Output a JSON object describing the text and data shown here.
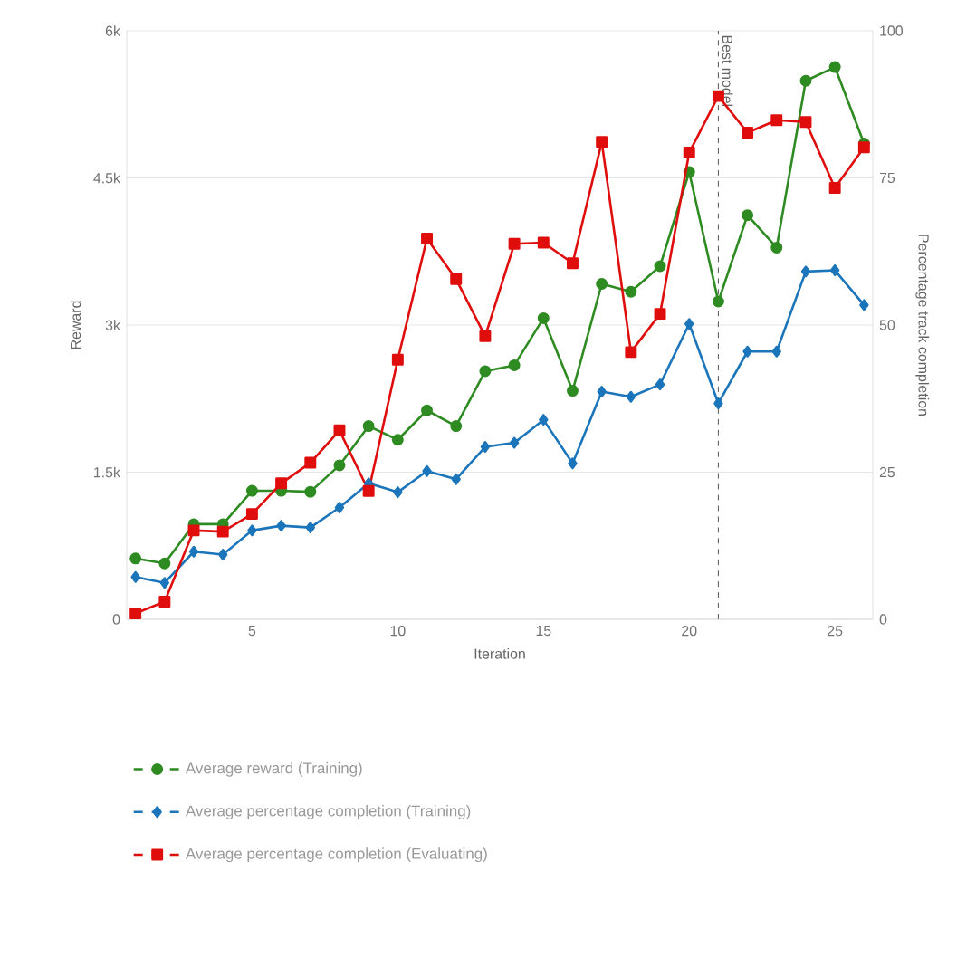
{
  "chart_data": {
    "type": "line",
    "xlabel": "Iteration",
    "ylabel": "Reward",
    "y2label": "Percentage track completion",
    "x": [
      1,
      2,
      3,
      4,
      5,
      6,
      7,
      8,
      9,
      10,
      11,
      12,
      13,
      14,
      15,
      16,
      17,
      18,
      19,
      20,
      21,
      22,
      23,
      24,
      25,
      26
    ],
    "xlim": [
      0.7,
      26.3
    ],
    "xticks": [
      5,
      10,
      15,
      20,
      25
    ],
    "ylim": [
      0,
      6000
    ],
    "yticks": [
      {
        "value": 0,
        "label": "0"
      },
      {
        "value": 1500,
        "label": "1.5k"
      },
      {
        "value": 3000,
        "label": "3k"
      },
      {
        "value": 4500,
        "label": "4.5k"
      },
      {
        "value": 6000,
        "label": "6k"
      }
    ],
    "y2lim": [
      0,
      100
    ],
    "y2ticks": [
      0,
      25,
      50,
      75,
      100
    ],
    "grid": "y",
    "legend": "bottom",
    "line_style": "solid",
    "ref_lines": [
      {
        "axis": "x",
        "value": 21,
        "label": "Best model",
        "line_style": "dashed",
        "color": "#555555"
      }
    ],
    "series": [
      {
        "name": "Average reward (Training)",
        "color": "#2e8b22",
        "marker": "circle",
        "values": [
          620,
          570,
          970,
          970,
          1310,
          1310,
          1300,
          1570,
          1970,
          1830,
          2130,
          1970,
          2530,
          2590,
          3070,
          2330,
          3420,
          3340,
          3600,
          4560,
          3240,
          4120,
          3790,
          5490,
          5630,
          4850
        ]
      },
      {
        "name": "Average percentage completion (Training)",
        "color": "#1b75bb",
        "marker": "diamond",
        "axis": "y2",
        "values": [
          7.2,
          6.2,
          11.5,
          11,
          15.1,
          15.9,
          15.6,
          19,
          23.1,
          21.6,
          25.2,
          23.8,
          29.3,
          30,
          33.9,
          26.5,
          38.7,
          37.8,
          39.9,
          50.2,
          36.7,
          45.5,
          45.5,
          59.1,
          59.3,
          53.4
        ]
      },
      {
        "name": "Average percentage completion (Evaluating)",
        "color": "#e00d0d",
        "marker": "square",
        "axis": "y2",
        "values": [
          1,
          3,
          15.1,
          14.9,
          17.9,
          23.1,
          26.6,
          32.1,
          21.8,
          44.1,
          64.7,
          57.8,
          48.1,
          63.8,
          64,
          60.5,
          81.1,
          45.4,
          51.9,
          79.3,
          88.9,
          82.7,
          84.8,
          84.5,
          73.3,
          80.2
        ]
      }
    ]
  }
}
